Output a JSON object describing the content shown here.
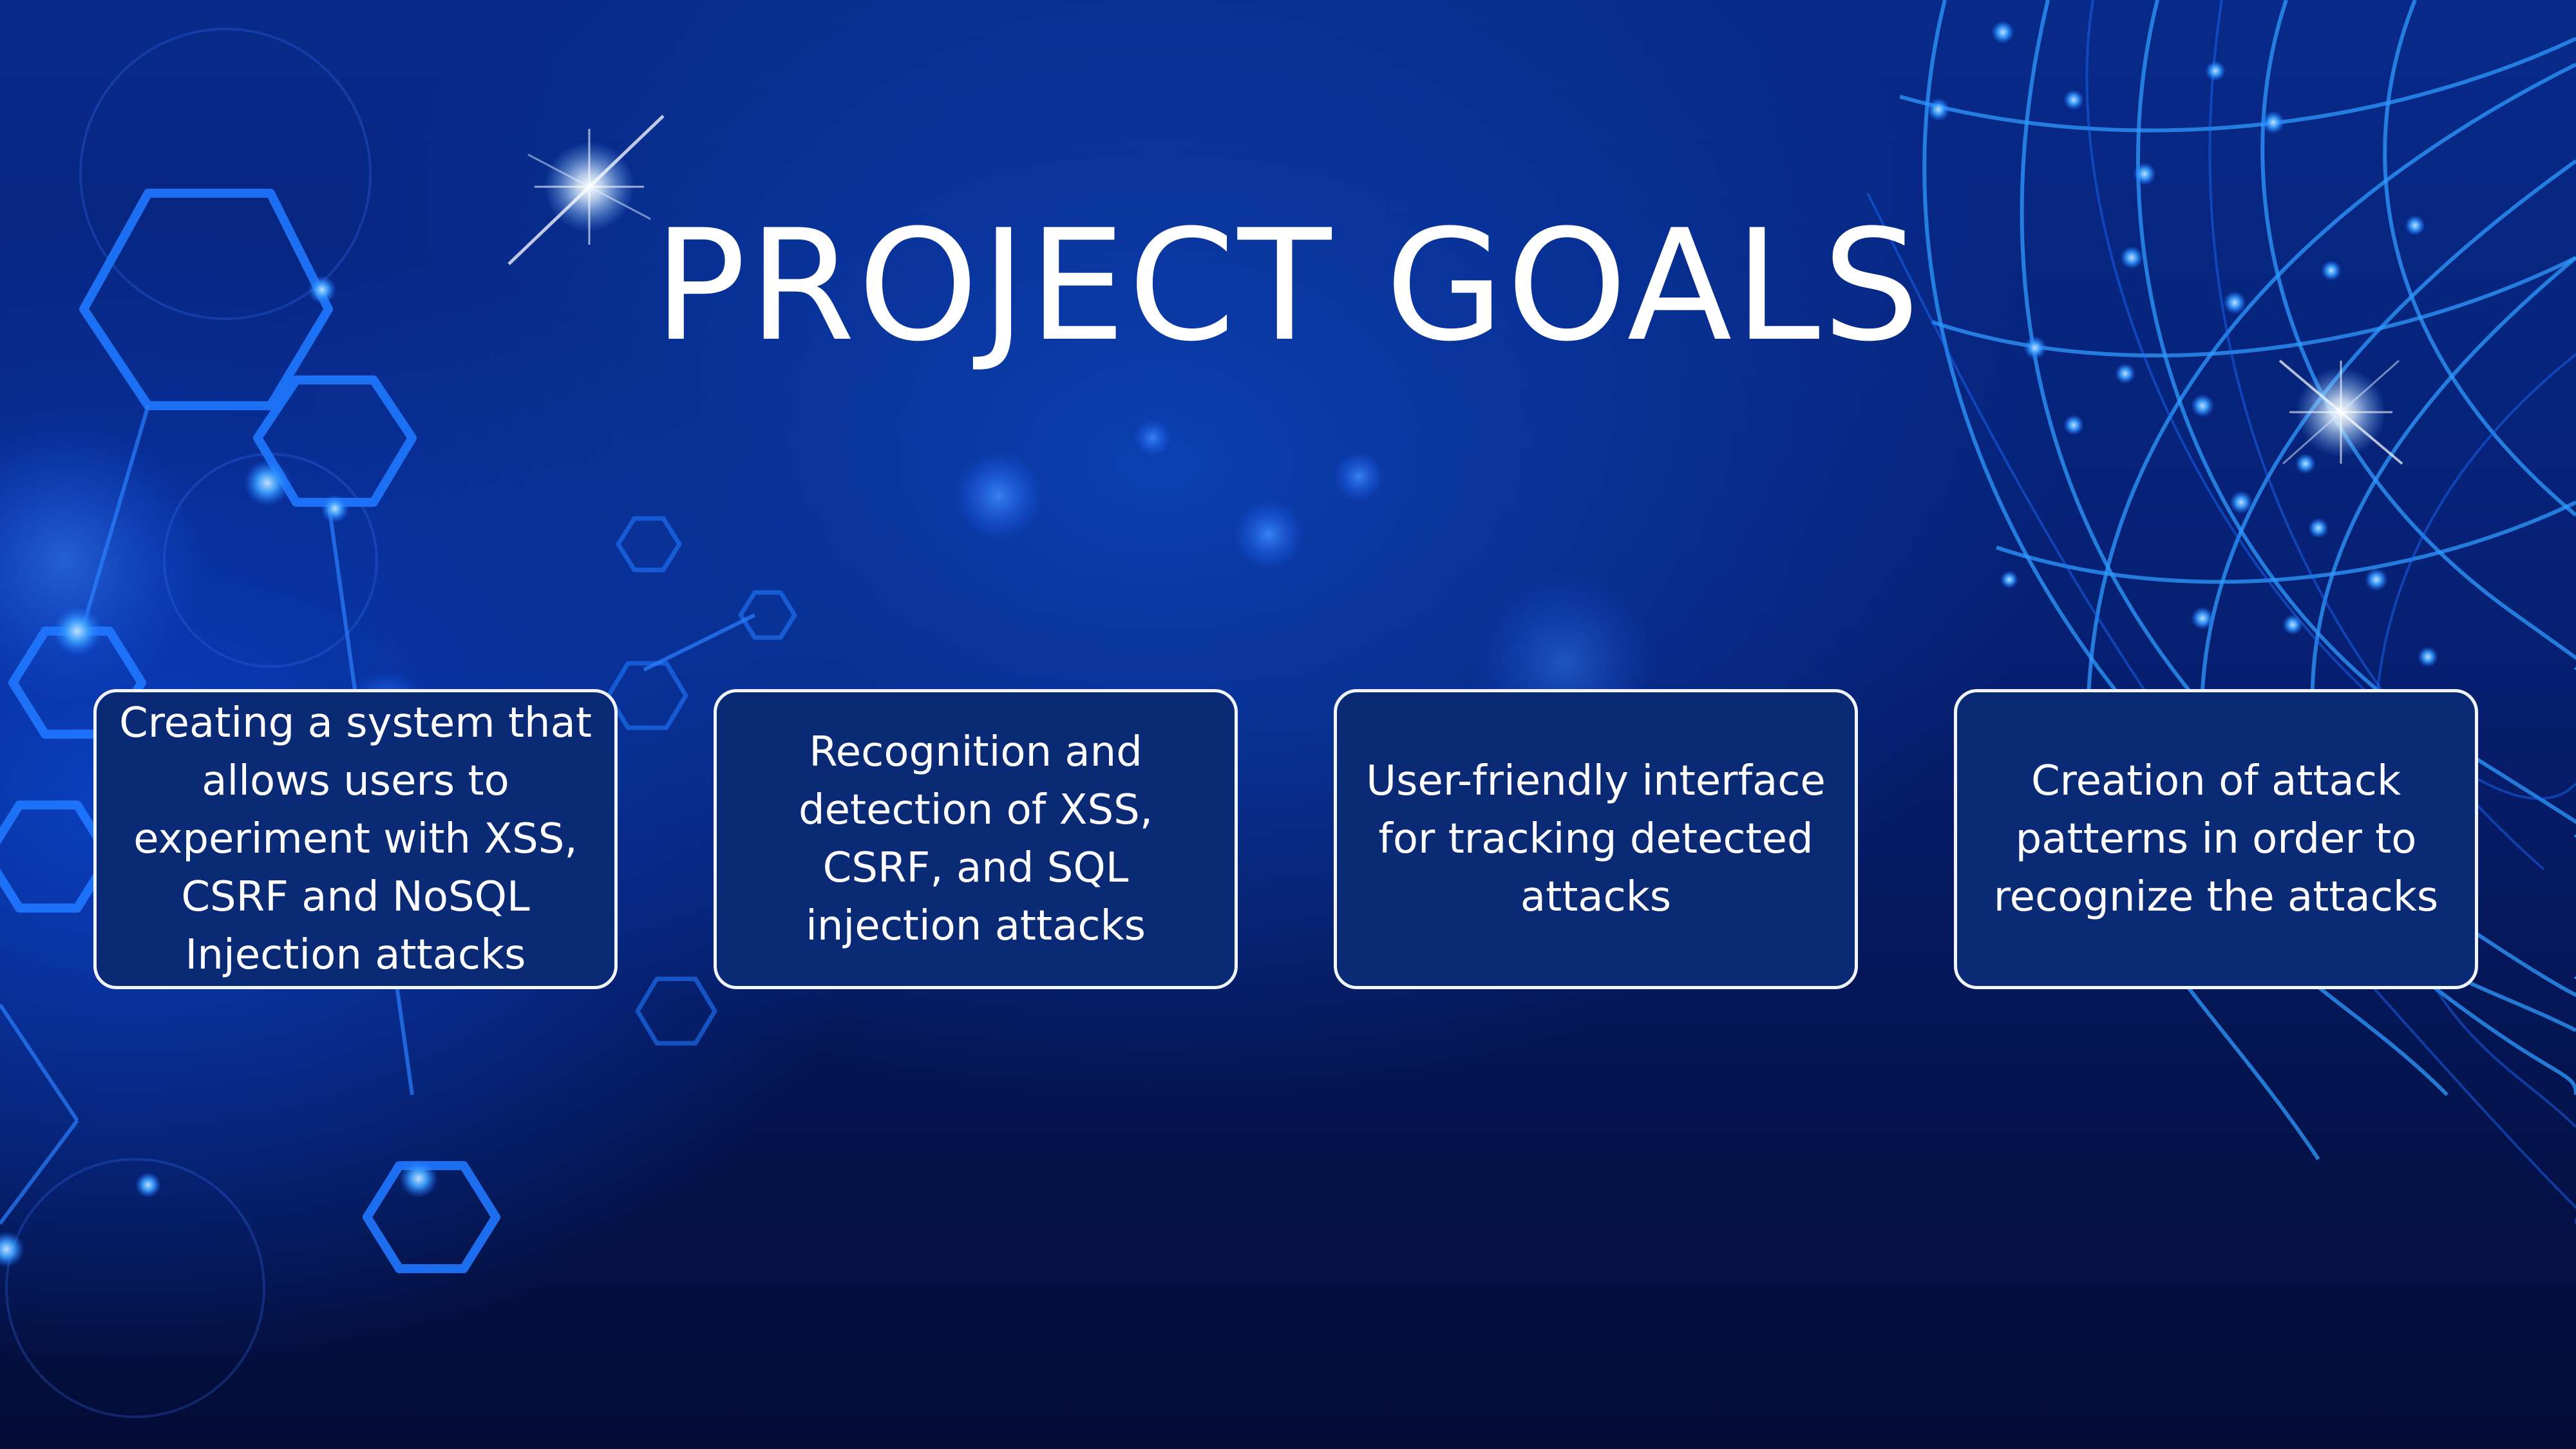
{
  "slide": {
    "title": "PROJECT GOALS"
  },
  "goals": [
    {
      "line1": "Creating a system that",
      "line2": "allows users to",
      "line3": "experiment with XSS,",
      "line4": "CSRF and NoSQL",
      "line5": "Injection attacks"
    },
    {
      "line1": "Recognition and",
      "line2": "detection of XSS,",
      "line3": "CSRF, and SQL",
      "line4": "injection attacks"
    },
    {
      "line1": "User-friendly interface",
      "line2": "for tracking detected",
      "line3": "attacks"
    },
    {
      "line1": "Creation of attack",
      "line2": "patterns in order to",
      "line3": "recognize the attacks"
    }
  ],
  "colors": {
    "background_dark": "#030c36",
    "background_mid": "#061f72",
    "glow_blue": "#1e7bff",
    "box_fill": "#0b2a75",
    "box_border": "#f2f4fb",
    "text": "#ffffff"
  }
}
